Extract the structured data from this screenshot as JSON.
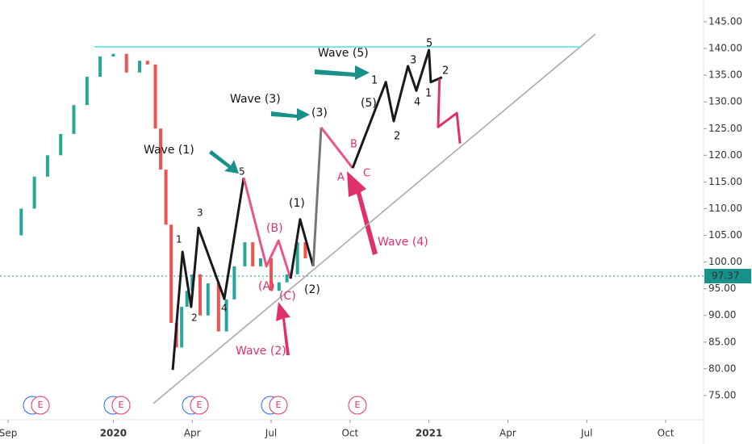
{
  "chart_data": {
    "type": "line",
    "xlim": [
      -0.307,
      26.44
    ],
    "ylim": [
      71.21,
      149.08
    ],
    "xticks": [
      {
        "value": 0,
        "label": "Sep"
      },
      {
        "value": 4,
        "label": "2020"
      },
      {
        "value": 7,
        "label": "Apr"
      },
      {
        "value": 10,
        "label": "Jul"
      },
      {
        "value": 13,
        "label": "Oct"
      },
      {
        "value": 16,
        "label": "2021"
      },
      {
        "value": 19,
        "label": "Apr"
      },
      {
        "value": 22,
        "label": "Jul"
      },
      {
        "value": 25,
        "label": "Oct"
      }
    ],
    "yticks": [
      {
        "value": 75,
        "label": "75.00"
      },
      {
        "value": 80,
        "label": "80.00"
      },
      {
        "value": 85,
        "label": "85.00"
      },
      {
        "value": 90,
        "label": "90.00"
      },
      {
        "value": 95,
        "label": "95.00"
      },
      {
        "value": 100,
        "label": "100.00"
      },
      {
        "value": 105,
        "label": "105.00"
      },
      {
        "value": 110,
        "label": "110.00"
      },
      {
        "value": 115,
        "label": "115.00"
      },
      {
        "value": 120,
        "label": "120.00"
      },
      {
        "value": 125,
        "label": "125.00"
      },
      {
        "value": 130,
        "label": "130.00"
      },
      {
        "value": 135,
        "label": "135.00"
      },
      {
        "value": 140,
        "label": "140.00"
      },
      {
        "value": 145,
        "label": "145.00"
      }
    ],
    "current_price": 97.37,
    "price": {
      "up_color": "#26a69a",
      "down_color": "#ef5350",
      "x": [
        0,
        0.5,
        1,
        1.5,
        2,
        2.5,
        3,
        3.5,
        4,
        4.5,
        5,
        5.3,
        5.6,
        5.8,
        6.0,
        6.2,
        6.4,
        6.6,
        6.8,
        7.0,
        7.3,
        7.6,
        8.0,
        8.3,
        8.6,
        9.0,
        9.3,
        9.6,
        10.0,
        10.3,
        10.6,
        11.0,
        11.3
      ],
      "values": [
        105,
        110,
        116,
        120,
        124,
        129.4,
        134.7,
        138.5,
        139,
        135.5,
        137.7,
        137,
        125,
        117.3,
        107,
        88.6,
        84,
        91.6,
        94.6,
        97.7,
        90,
        96,
        87,
        93,
        99.2,
        103.7,
        99.2,
        100.7,
        94.6,
        96.2,
        97.7,
        103.7,
        100.7
      ]
    },
    "series": [
      {
        "color": "#1a1a1a",
        "x": [
          6.26,
          6.63,
          6.96,
          7.24,
          8.22,
          8.96
        ],
        "values": [
          79.8,
          101.9,
          91.6,
          106.4,
          93.1,
          115.8
        ]
      },
      {
        "color": "#e8558a",
        "x": [
          8.96,
          9.82,
          10.28,
          10.74
        ],
        "values": [
          115.8,
          99.2,
          104.0,
          96.9
        ]
      },
      {
        "color": "#1a1a1a",
        "x": [
          10.74,
          11.1,
          11.6
        ],
        "values": [
          96.9,
          108.0,
          99.2
        ]
      },
      {
        "color": "#777777",
        "x": [
          11.6,
          11.9
        ],
        "values": [
          99.2,
          125.2
        ]
      },
      {
        "color": "#e8558a",
        "x": [
          11.9,
          13.1
        ],
        "values": [
          125.2,
          117.6
        ]
      },
      {
        "color": "#1a1a1a",
        "x": [
          13.1,
          14.36,
          14.66,
          15.2,
          15.52,
          16.0,
          16.07,
          16.5
        ],
        "values": [
          117.6,
          133.7,
          126.4,
          136.7,
          132.1,
          139.7,
          133.7,
          134.6
        ]
      },
      {
        "color": "#e0306c",
        "x": [
          16.4,
          16.35,
          17.06,
          17.18
        ],
        "values": [
          134.3,
          125.3,
          127.9,
          122.2
        ]
      },
      {
        "color": "#aaaaaa",
        "x": [
          5.52,
          22.33
        ],
        "values": [
          73.5,
          142.7
        ]
      },
      {
        "color": "#5ee0e0",
        "x": [
          3.28,
          21.8
        ],
        "values": [
          140.3,
          140.3
        ]
      }
    ],
    "annotations": [
      "Wave (1)",
      "Wave (3)",
      "Wave (5)",
      "Wave (2)",
      "Wave (4)",
      "1",
      "2",
      "3",
      "4",
      "5",
      "(A)",
      "(B)",
      "(C)",
      "(1)",
      "(2)",
      "(3)",
      "(5)",
      "A",
      "B",
      "C",
      "1",
      "2",
      "3",
      "4",
      "5",
      "1",
      "2"
    ],
    "events": [
      "E",
      "E",
      "E",
      "E",
      "E"
    ]
  }
}
